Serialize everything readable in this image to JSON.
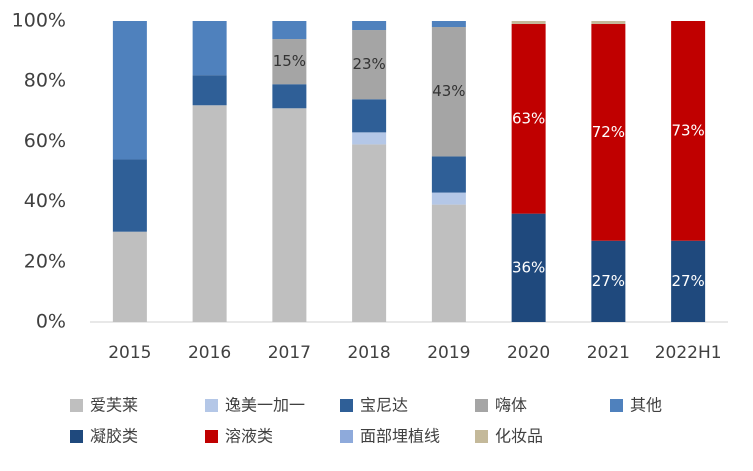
{
  "chart_data": {
    "type": "stacked_bar",
    "categories": [
      "2015",
      "2016",
      "2017",
      "2018",
      "2019",
      "2020",
      "2021",
      "2022H1"
    ],
    "ylim": [
      0,
      100
    ],
    "yticks": [
      {
        "value": 0,
        "label": "0%"
      },
      {
        "value": 20,
        "label": "20%"
      },
      {
        "value": 40,
        "label": "40%"
      },
      {
        "value": 60,
        "label": "60%"
      },
      {
        "value": 80,
        "label": "80%"
      },
      {
        "value": 100,
        "label": "100%"
      }
    ],
    "series": [
      {
        "name": "爱芙莱",
        "color": "#bfbfbf",
        "values": [
          30,
          72,
          71,
          59,
          39,
          null,
          null,
          null
        ]
      },
      {
        "name": "逸美一加一",
        "color": "#b4c7e7",
        "values": [
          null,
          null,
          null,
          4,
          4,
          null,
          null,
          null
        ]
      },
      {
        "name": "宝尼达",
        "color": "#2f5f97",
        "values": [
          24,
          10,
          8,
          11,
          12,
          null,
          null,
          null
        ]
      },
      {
        "name": "嗨体",
        "color": "#a5a5a5",
        "values": [
          null,
          null,
          15,
          23,
          43,
          null,
          null,
          null
        ],
        "value_labels": [
          null,
          null,
          "15%",
          "23%",
          "43%",
          null,
          null,
          null
        ]
      },
      {
        "name": "其他",
        "color": "#4f81bd",
        "values": [
          46,
          18,
          6,
          3,
          2,
          null,
          null,
          null
        ]
      },
      {
        "name": "凝胶类",
        "color": "#1f497d",
        "values": [
          null,
          null,
          null,
          null,
          null,
          36,
          27,
          27
        ],
        "value_labels": [
          null,
          null,
          null,
          null,
          null,
          "36%",
          "27%",
          "27%"
        ]
      },
      {
        "name": "溶液类",
        "color": "#c00000",
        "values": [
          null,
          null,
          null,
          null,
          null,
          63,
          72,
          73
        ],
        "value_labels": [
          null,
          null,
          null,
          null,
          null,
          "63%",
          "72%",
          "73%"
        ]
      },
      {
        "name": "面部埋植线",
        "color": "#8eaadb",
        "values": [
          null,
          null,
          null,
          null,
          null,
          null,
          null,
          null
        ]
      },
      {
        "name": "化妆品",
        "color": "#c4b99a",
        "values": [
          null,
          null,
          null,
          null,
          null,
          1,
          1,
          null
        ]
      }
    ]
  }
}
